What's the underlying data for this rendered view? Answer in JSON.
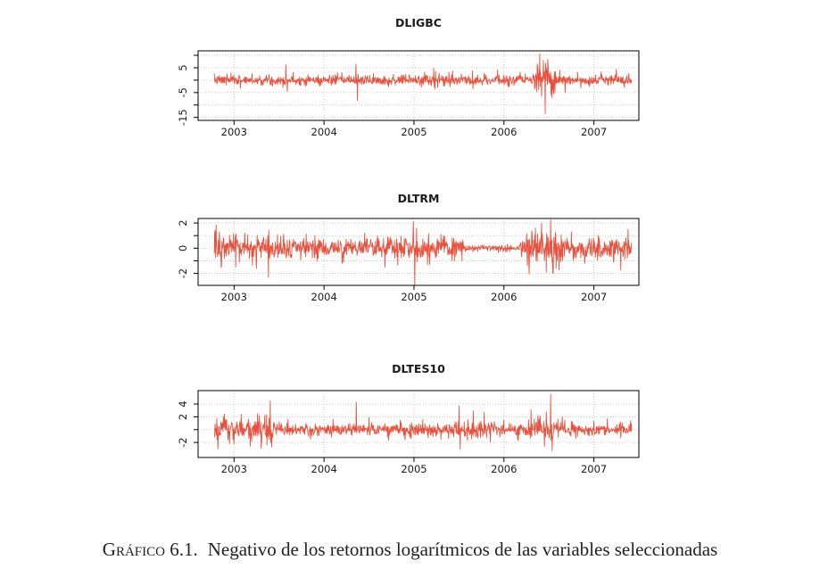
{
  "caption": {
    "label": "Gráfico 6.1.",
    "text": "Negativo de los retornos logarítmicos de las variables seleccionadas"
  },
  "style": {
    "line_color": "#e8523e",
    "grid_color": "#cbcbcb",
    "axis_color": "#000000",
    "tick_label_color": "#1b1b1b"
  },
  "chart_data": [
    {
      "type": "line",
      "title": "DLIGBC",
      "xlabel": "",
      "ylabel": "",
      "legend": null,
      "grid": true,
      "x_ticks": [
        2003,
        2004,
        2005,
        2006,
        2007
      ],
      "x_tick_labels": [
        "2003",
        "2004",
        "2005",
        "2006",
        "2007"
      ],
      "y_ticks": [
        10,
        5,
        0,
        -5,
        -10,
        -15
      ],
      "y_tick_labels": [
        "",
        "5",
        "",
        "-5",
        "",
        "-15"
      ],
      "xlim": [
        2002.6,
        2007.5
      ],
      "ylim": [
        -16.2,
        11.8
      ],
      "x_range_data": [
        2002.78,
        2007.42
      ],
      "n_points": 1150,
      "seed": 7,
      "baseline": 0,
      "noise_sd": 0.95,
      "volatility_segments": [
        [
          2005.08,
          2005.45,
          1.3
        ],
        [
          2006.34,
          2006.58,
          2.8
        ]
      ],
      "spikes": [
        [
          2002.92,
          2.5
        ],
        [
          2003.07,
          -3.2
        ],
        [
          2003.2,
          2.6
        ],
        [
          2003.43,
          -2.4
        ],
        [
          2003.575,
          6.2
        ],
        [
          2003.59,
          -4.6
        ],
        [
          2003.82,
          2.2
        ],
        [
          2003.95,
          -2.4
        ],
        [
          2004.15,
          3.0
        ],
        [
          2004.355,
          6.4
        ],
        [
          2004.37,
          -8.2
        ],
        [
          2004.55,
          2.6
        ],
        [
          2004.72,
          -2.6
        ],
        [
          2004.95,
          2.2
        ],
        [
          2005.12,
          3.2
        ],
        [
          2005.22,
          4.8
        ],
        [
          2005.235,
          -3.6
        ],
        [
          2005.4,
          -2.6
        ],
        [
          2005.65,
          3.8
        ],
        [
          2005.78,
          2.8
        ],
        [
          2005.93,
          4.2
        ],
        [
          2006.05,
          -2.8
        ],
        [
          2006.18,
          3.2
        ],
        [
          2006.37,
          6.5
        ],
        [
          2006.4,
          10.5
        ],
        [
          2006.42,
          -6.5
        ],
        [
          2006.44,
          8.0
        ],
        [
          2006.46,
          -13.5
        ],
        [
          2006.49,
          6.0
        ],
        [
          2006.53,
          -7.0
        ],
        [
          2006.62,
          4.0
        ],
        [
          2006.68,
          -5.0
        ],
        [
          2006.82,
          3.2
        ],
        [
          2006.95,
          -2.6
        ],
        [
          2007.08,
          3.4
        ],
        [
          2007.25,
          4.3
        ],
        [
          2007.34,
          -3.0
        ]
      ]
    },
    {
      "type": "line",
      "title": "DLTRM",
      "xlabel": "",
      "ylabel": "",
      "legend": null,
      "grid": true,
      "x_ticks": [
        2003,
        2004,
        2005,
        2006,
        2007
      ],
      "x_tick_labels": [
        "2003",
        "2004",
        "2005",
        "2006",
        "2007"
      ],
      "y_ticks": [
        2,
        1,
        0,
        -1,
        -2
      ],
      "y_tick_labels": [
        "2",
        "",
        "0",
        "",
        "-2"
      ],
      "xlim": [
        2002.6,
        2007.5
      ],
      "ylim": [
        -2.95,
        2.36
      ],
      "x_range_data": [
        2002.78,
        2007.42
      ],
      "n_points": 1150,
      "seed": 13,
      "baseline": 0,
      "noise_sd": 0.42,
      "volatility_segments": [
        [
          2002.78,
          2003.4,
          0.55
        ],
        [
          2005.55,
          2006.18,
          0.12
        ],
        [
          2006.25,
          2006.65,
          0.75
        ]
      ],
      "spikes": [
        [
          2002.8,
          1.85
        ],
        [
          2002.86,
          -1.4
        ],
        [
          2003.02,
          -1.5
        ],
        [
          2003.12,
          1.2
        ],
        [
          2003.25,
          -1.6
        ],
        [
          2003.38,
          -2.3
        ],
        [
          2003.55,
          1.1
        ],
        [
          2003.9,
          1.0
        ],
        [
          2004.2,
          -1.2
        ],
        [
          2004.45,
          1.2
        ],
        [
          2004.68,
          -1.5
        ],
        [
          2004.82,
          -1.35
        ],
        [
          2004.995,
          2.1
        ],
        [
          2005.01,
          -2.9
        ],
        [
          2005.03,
          1.6
        ],
        [
          2005.15,
          -1.3
        ],
        [
          2005.3,
          1.1
        ],
        [
          2005.45,
          -1.0
        ],
        [
          2006.28,
          -2.05
        ],
        [
          2006.35,
          1.6
        ],
        [
          2006.42,
          2.0
        ],
        [
          2006.47,
          -1.9
        ],
        [
          2006.52,
          2.25
        ],
        [
          2006.58,
          -1.6
        ],
        [
          2006.75,
          1.3
        ],
        [
          2006.9,
          -1.2
        ],
        [
          2007.05,
          1.0
        ],
        [
          2007.22,
          -1.1
        ],
        [
          2007.3,
          -1.75
        ],
        [
          2007.38,
          1.5
        ]
      ]
    },
    {
      "type": "line",
      "title": "DLTES10",
      "xlabel": "",
      "ylabel": "",
      "legend": null,
      "grid": true,
      "x_ticks": [
        2003,
        2004,
        2005,
        2006,
        2007
      ],
      "x_tick_labels": [
        "2003",
        "2004",
        "2005",
        "2006",
        "2007"
      ],
      "y_ticks": [
        4,
        2,
        0,
        -2
      ],
      "y_tick_labels": [
        "4",
        "2",
        "",
        "-2"
      ],
      "xlim": [
        2002.6,
        2007.5
      ],
      "ylim": [
        -4.35,
        6.1
      ],
      "x_range_data": [
        2002.78,
        2007.42
      ],
      "n_points": 1150,
      "seed": 21,
      "baseline": 0,
      "noise_sd": 0.5,
      "volatility_segments": [
        [
          2002.78,
          2003.45,
          0.95
        ],
        [
          2005.45,
          2005.9,
          0.7
        ],
        [
          2006.25,
          2006.62,
          0.9
        ],
        [
          2006.85,
          2007.42,
          0.38
        ]
      ],
      "spikes": [
        [
          2002.82,
          -3.0
        ],
        [
          2002.88,
          2.0
        ],
        [
          2003.0,
          -2.2
        ],
        [
          2003.08,
          2.4
        ],
        [
          2003.18,
          -2.6
        ],
        [
          2003.3,
          -2.9
        ],
        [
          2003.34,
          2.2
        ],
        [
          2003.4,
          4.5
        ],
        [
          2003.42,
          -2.7
        ],
        [
          2003.6,
          1.6
        ],
        [
          2003.85,
          -1.5
        ],
        [
          2004.1,
          1.6
        ],
        [
          2004.36,
          4.3
        ],
        [
          2004.5,
          1.9
        ],
        [
          2004.72,
          -1.7
        ],
        [
          2004.9,
          -1.6
        ],
        [
          2005.1,
          1.6
        ],
        [
          2005.3,
          -1.5
        ],
        [
          2005.5,
          3.7
        ],
        [
          2005.515,
          -3.1
        ],
        [
          2005.78,
          2.7
        ],
        [
          2005.85,
          -2.0
        ],
        [
          2006.0,
          1.5
        ],
        [
          2006.15,
          -1.5
        ],
        [
          2006.3,
          3.1
        ],
        [
          2006.38,
          2.2
        ],
        [
          2006.45,
          -2.6
        ],
        [
          2006.52,
          5.5
        ],
        [
          2006.535,
          -3.3
        ],
        [
          2006.65,
          2.0
        ],
        [
          2006.8,
          -1.4
        ],
        [
          2007.0,
          1.3
        ],
        [
          2007.15,
          1.7
        ],
        [
          2007.3,
          -1.3
        ]
      ]
    }
  ]
}
